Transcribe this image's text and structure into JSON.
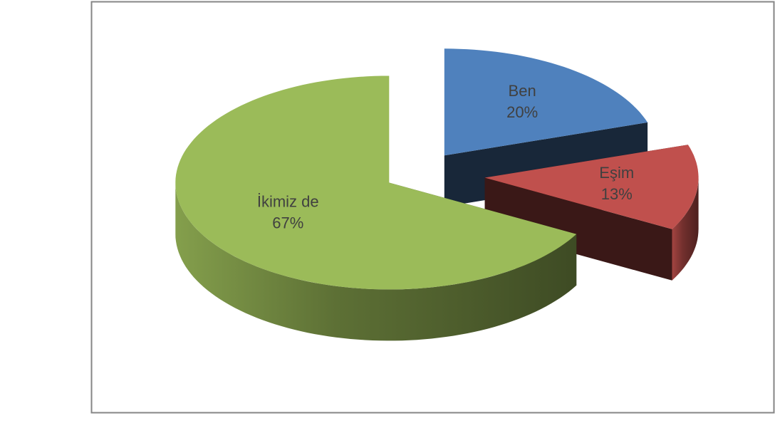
{
  "chart_data": {
    "type": "pie3d",
    "categories": [
      "Ben",
      "Eşim",
      "İkimiz de"
    ],
    "values": [
      20,
      13,
      67
    ],
    "value_labels": [
      "20%",
      "13%",
      "67%"
    ],
    "colors": [
      "#4f81bd",
      "#c0504d",
      "#9bbb59"
    ]
  }
}
